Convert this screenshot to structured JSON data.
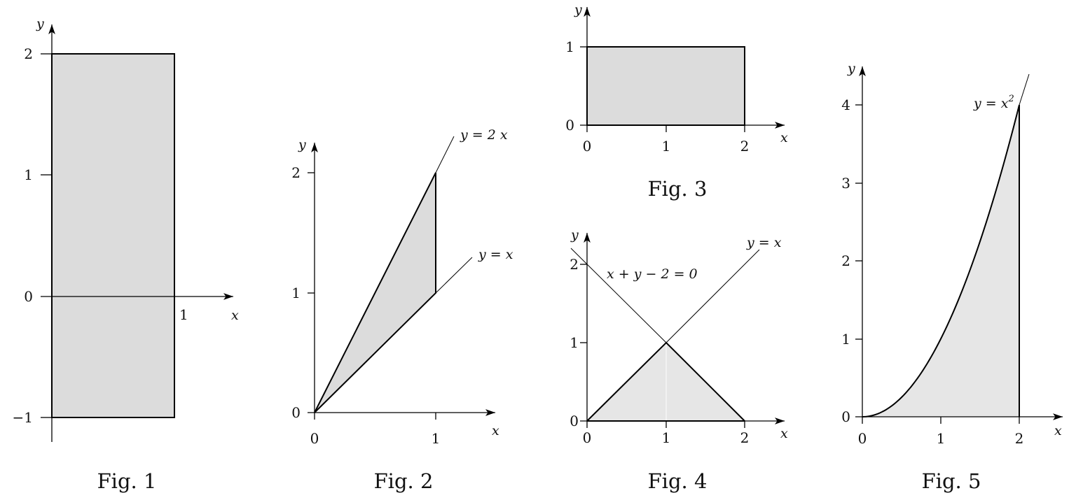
{
  "figures": [
    {
      "caption": "Fig. 1",
      "x_axis_label": "x",
      "y_axis_label": "y",
      "x_ticks": [
        "1"
      ],
      "y_ticks": [
        "2",
        "1",
        "0",
        "−1"
      ]
    },
    {
      "caption": "Fig. 2",
      "x_axis_label": "x",
      "y_axis_label": "y",
      "x_ticks": [
        "0",
        "1"
      ],
      "y_ticks": [
        "2",
        "1",
        "0"
      ],
      "curve_labels": [
        "y = 2 x",
        "y = x"
      ]
    },
    {
      "caption": "Fig. 3",
      "x_axis_label": "x",
      "y_axis_label": "y",
      "x_ticks": [
        "0",
        "1",
        "2"
      ],
      "y_ticks": [
        "1",
        "0"
      ]
    },
    {
      "caption": "Fig. 4",
      "x_axis_label": "x",
      "y_axis_label": "y",
      "x_ticks": [
        "0",
        "1",
        "2"
      ],
      "y_ticks": [
        "2",
        "1",
        "0"
      ],
      "curve_labels": [
        "y = x",
        "x + y − 2 = 0"
      ]
    },
    {
      "caption": "Fig. 5",
      "x_axis_label": "x",
      "y_axis_label": "y",
      "x_ticks": [
        "0",
        "1",
        "2"
      ],
      "y_ticks": [
        "4",
        "3",
        "2",
        "1",
        "0"
      ],
      "curve_label_base": "y = x",
      "curve_label_exp": "2"
    }
  ]
}
